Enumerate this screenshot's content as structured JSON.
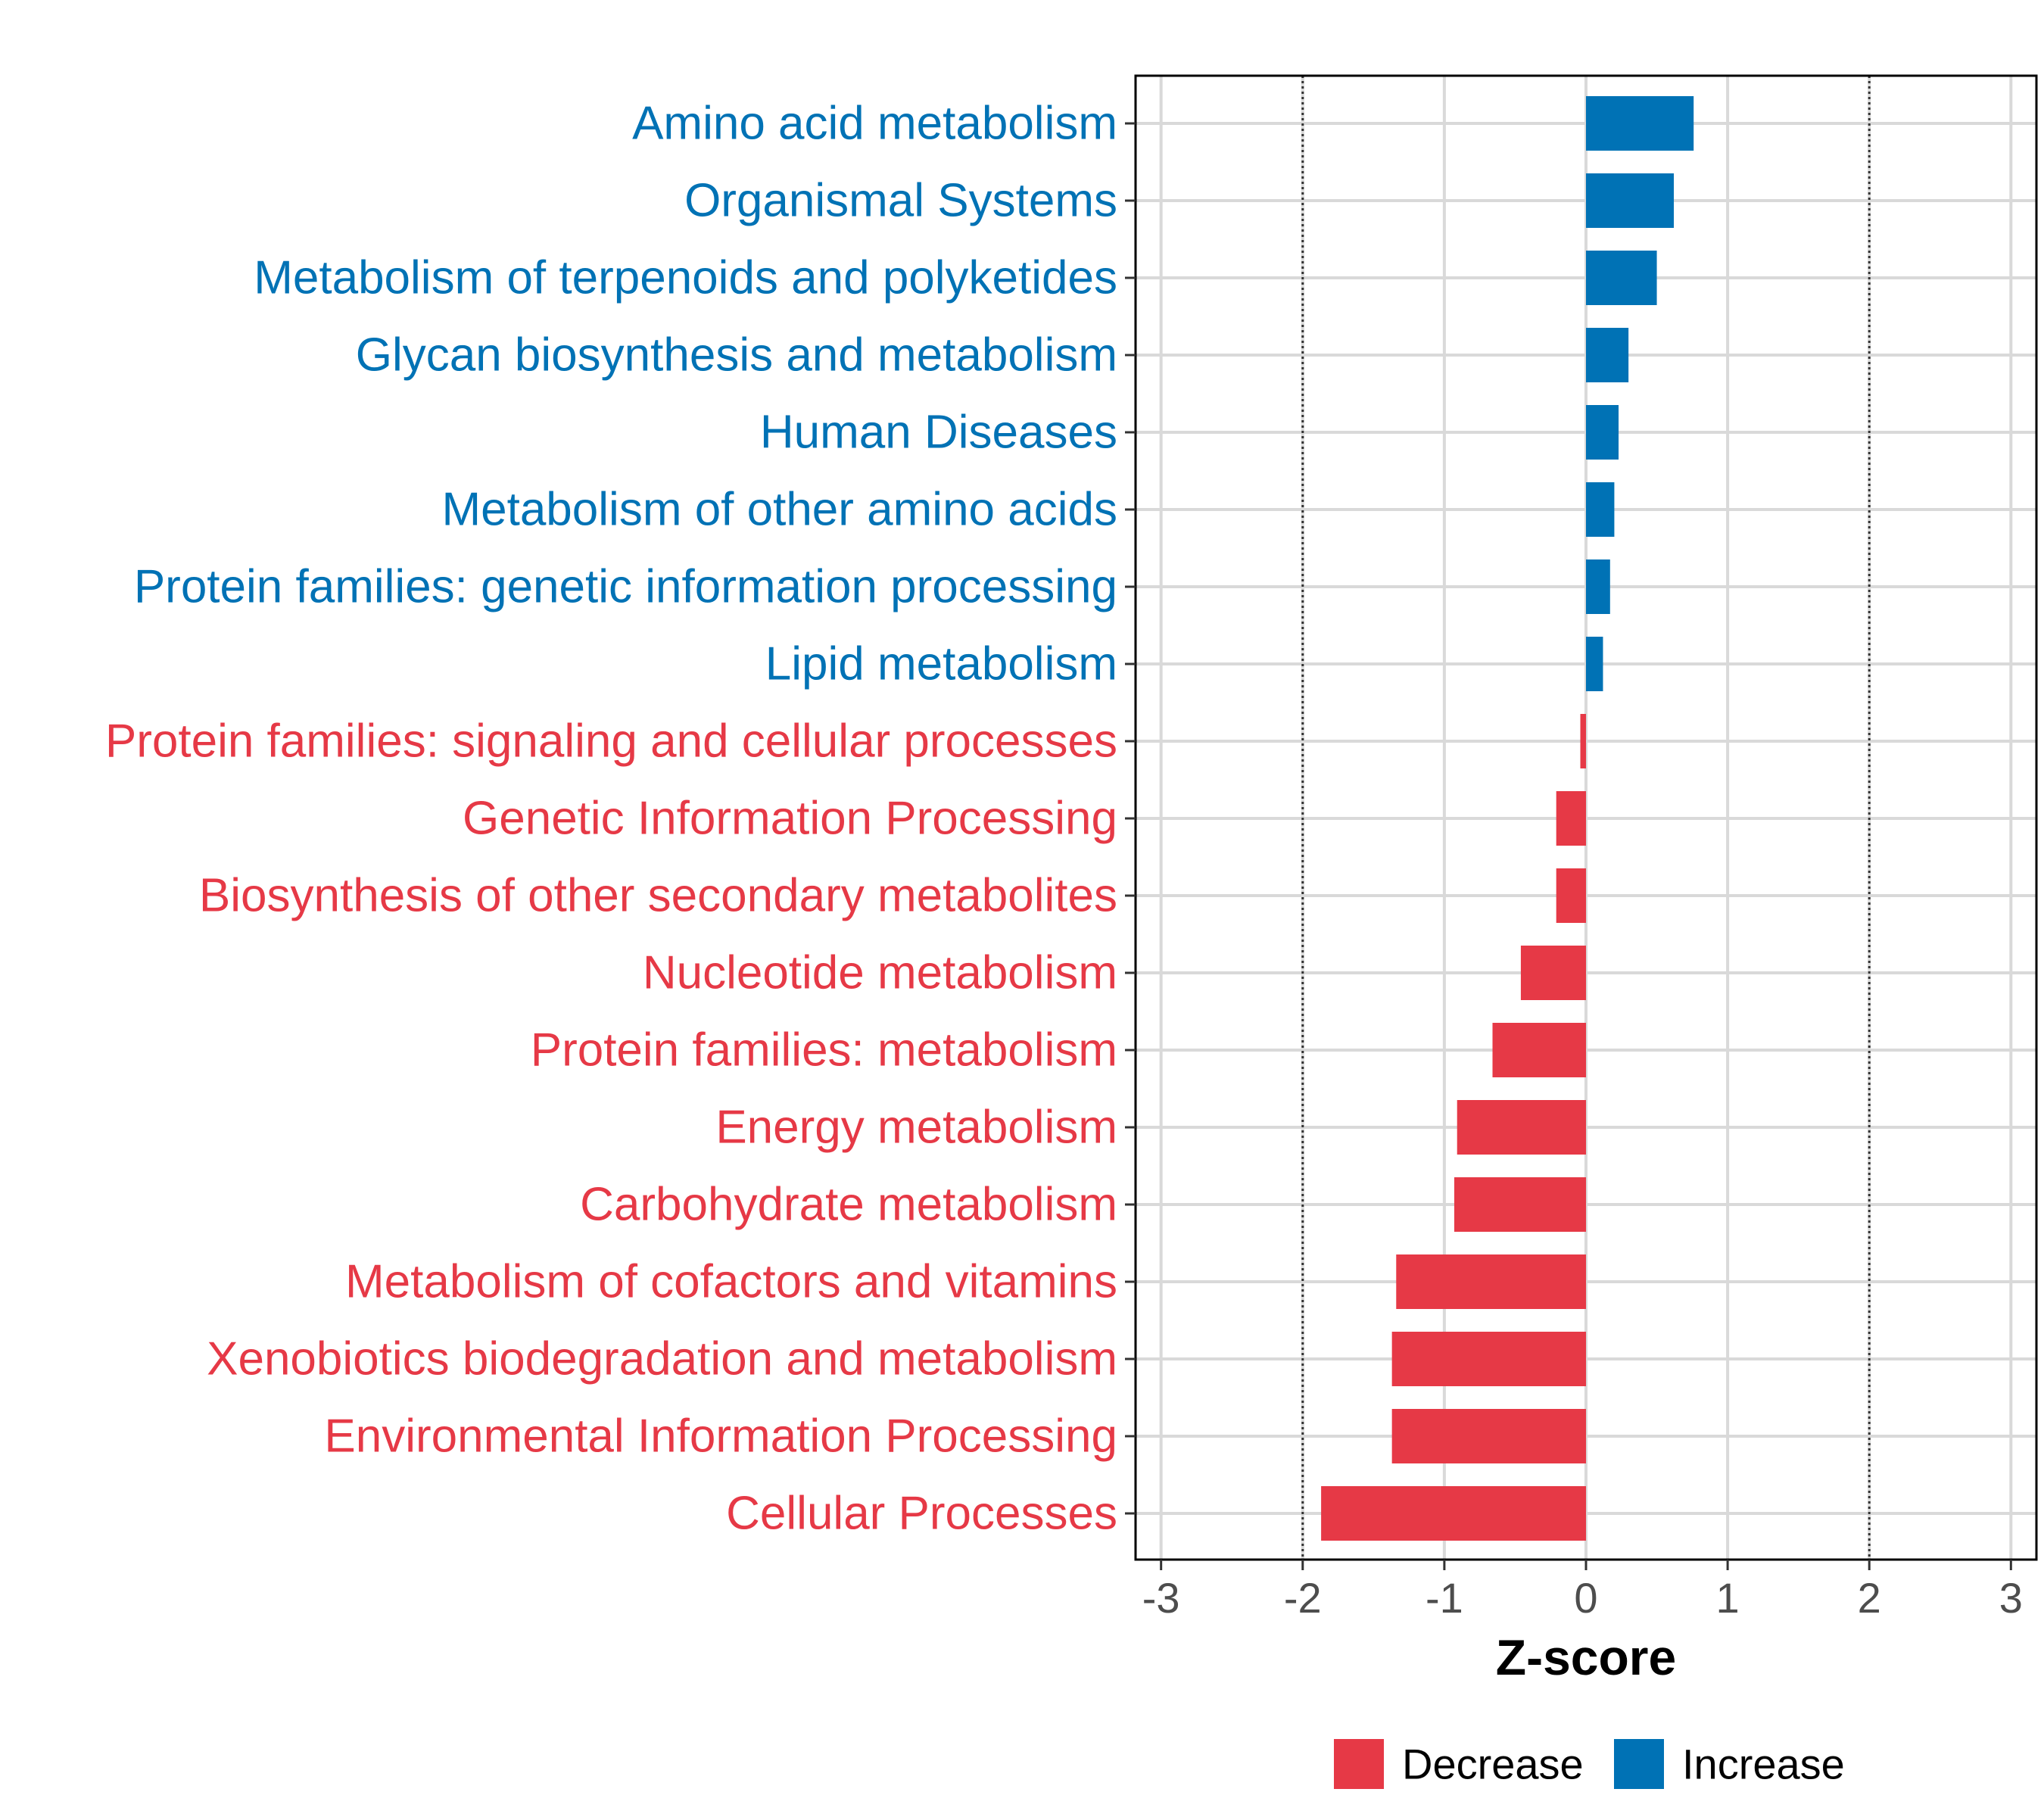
{
  "colors": {
    "decrease": "#e63946",
    "increase": "#0072b5",
    "grid": "#d9d9d9",
    "panel_border": "#000000"
  },
  "chart_data": {
    "type": "bar",
    "orientation": "horizontal",
    "xlabel": "Z-score",
    "xlim": [
      -3,
      3
    ],
    "xticks": [
      -3,
      -2,
      -1,
      0,
      1,
      2,
      3
    ],
    "xtick_labels": [
      "-3",
      "-2",
      "-1",
      "0",
      "1",
      "2",
      "3"
    ],
    "reference_lines": [
      -2,
      2
    ],
    "grid": true,
    "legend": {
      "position": "bottom",
      "entries": [
        {
          "label": "Decrease",
          "color": "#e63946"
        },
        {
          "label": "Increase",
          "color": "#0072b5"
        }
      ]
    },
    "categories": [
      "Amino acid metabolism",
      "Organismal Systems",
      "Metabolism of terpenoids and polyketides",
      "Glycan biosynthesis and metabolism",
      "Human Diseases",
      "Metabolism of other amino acids",
      "Protein families: genetic information processing",
      "Lipid metabolism",
      "Protein families: signaling and cellular processes",
      "Genetic Information Processing",
      "Biosynthesis of other secondary metabolites",
      "Nucleotide metabolism",
      "Protein families: metabolism",
      "Energy metabolism",
      "Carbohydrate metabolism",
      "Metabolism of cofactors and vitamins",
      "Xenobiotics biodegradation and metabolism",
      "Environmental Information Processing",
      "Cellular Processes"
    ],
    "values": [
      0.76,
      0.62,
      0.5,
      0.3,
      0.23,
      0.2,
      0.17,
      0.12,
      -0.04,
      -0.21,
      -0.21,
      -0.46,
      -0.66,
      -0.91,
      -0.93,
      -1.34,
      -1.37,
      -1.37,
      -1.87
    ],
    "groups": [
      "Increase",
      "Increase",
      "Increase",
      "Increase",
      "Increase",
      "Increase",
      "Increase",
      "Increase",
      "Decrease",
      "Decrease",
      "Decrease",
      "Decrease",
      "Decrease",
      "Decrease",
      "Decrease",
      "Decrease",
      "Decrease",
      "Decrease",
      "Decrease"
    ]
  }
}
